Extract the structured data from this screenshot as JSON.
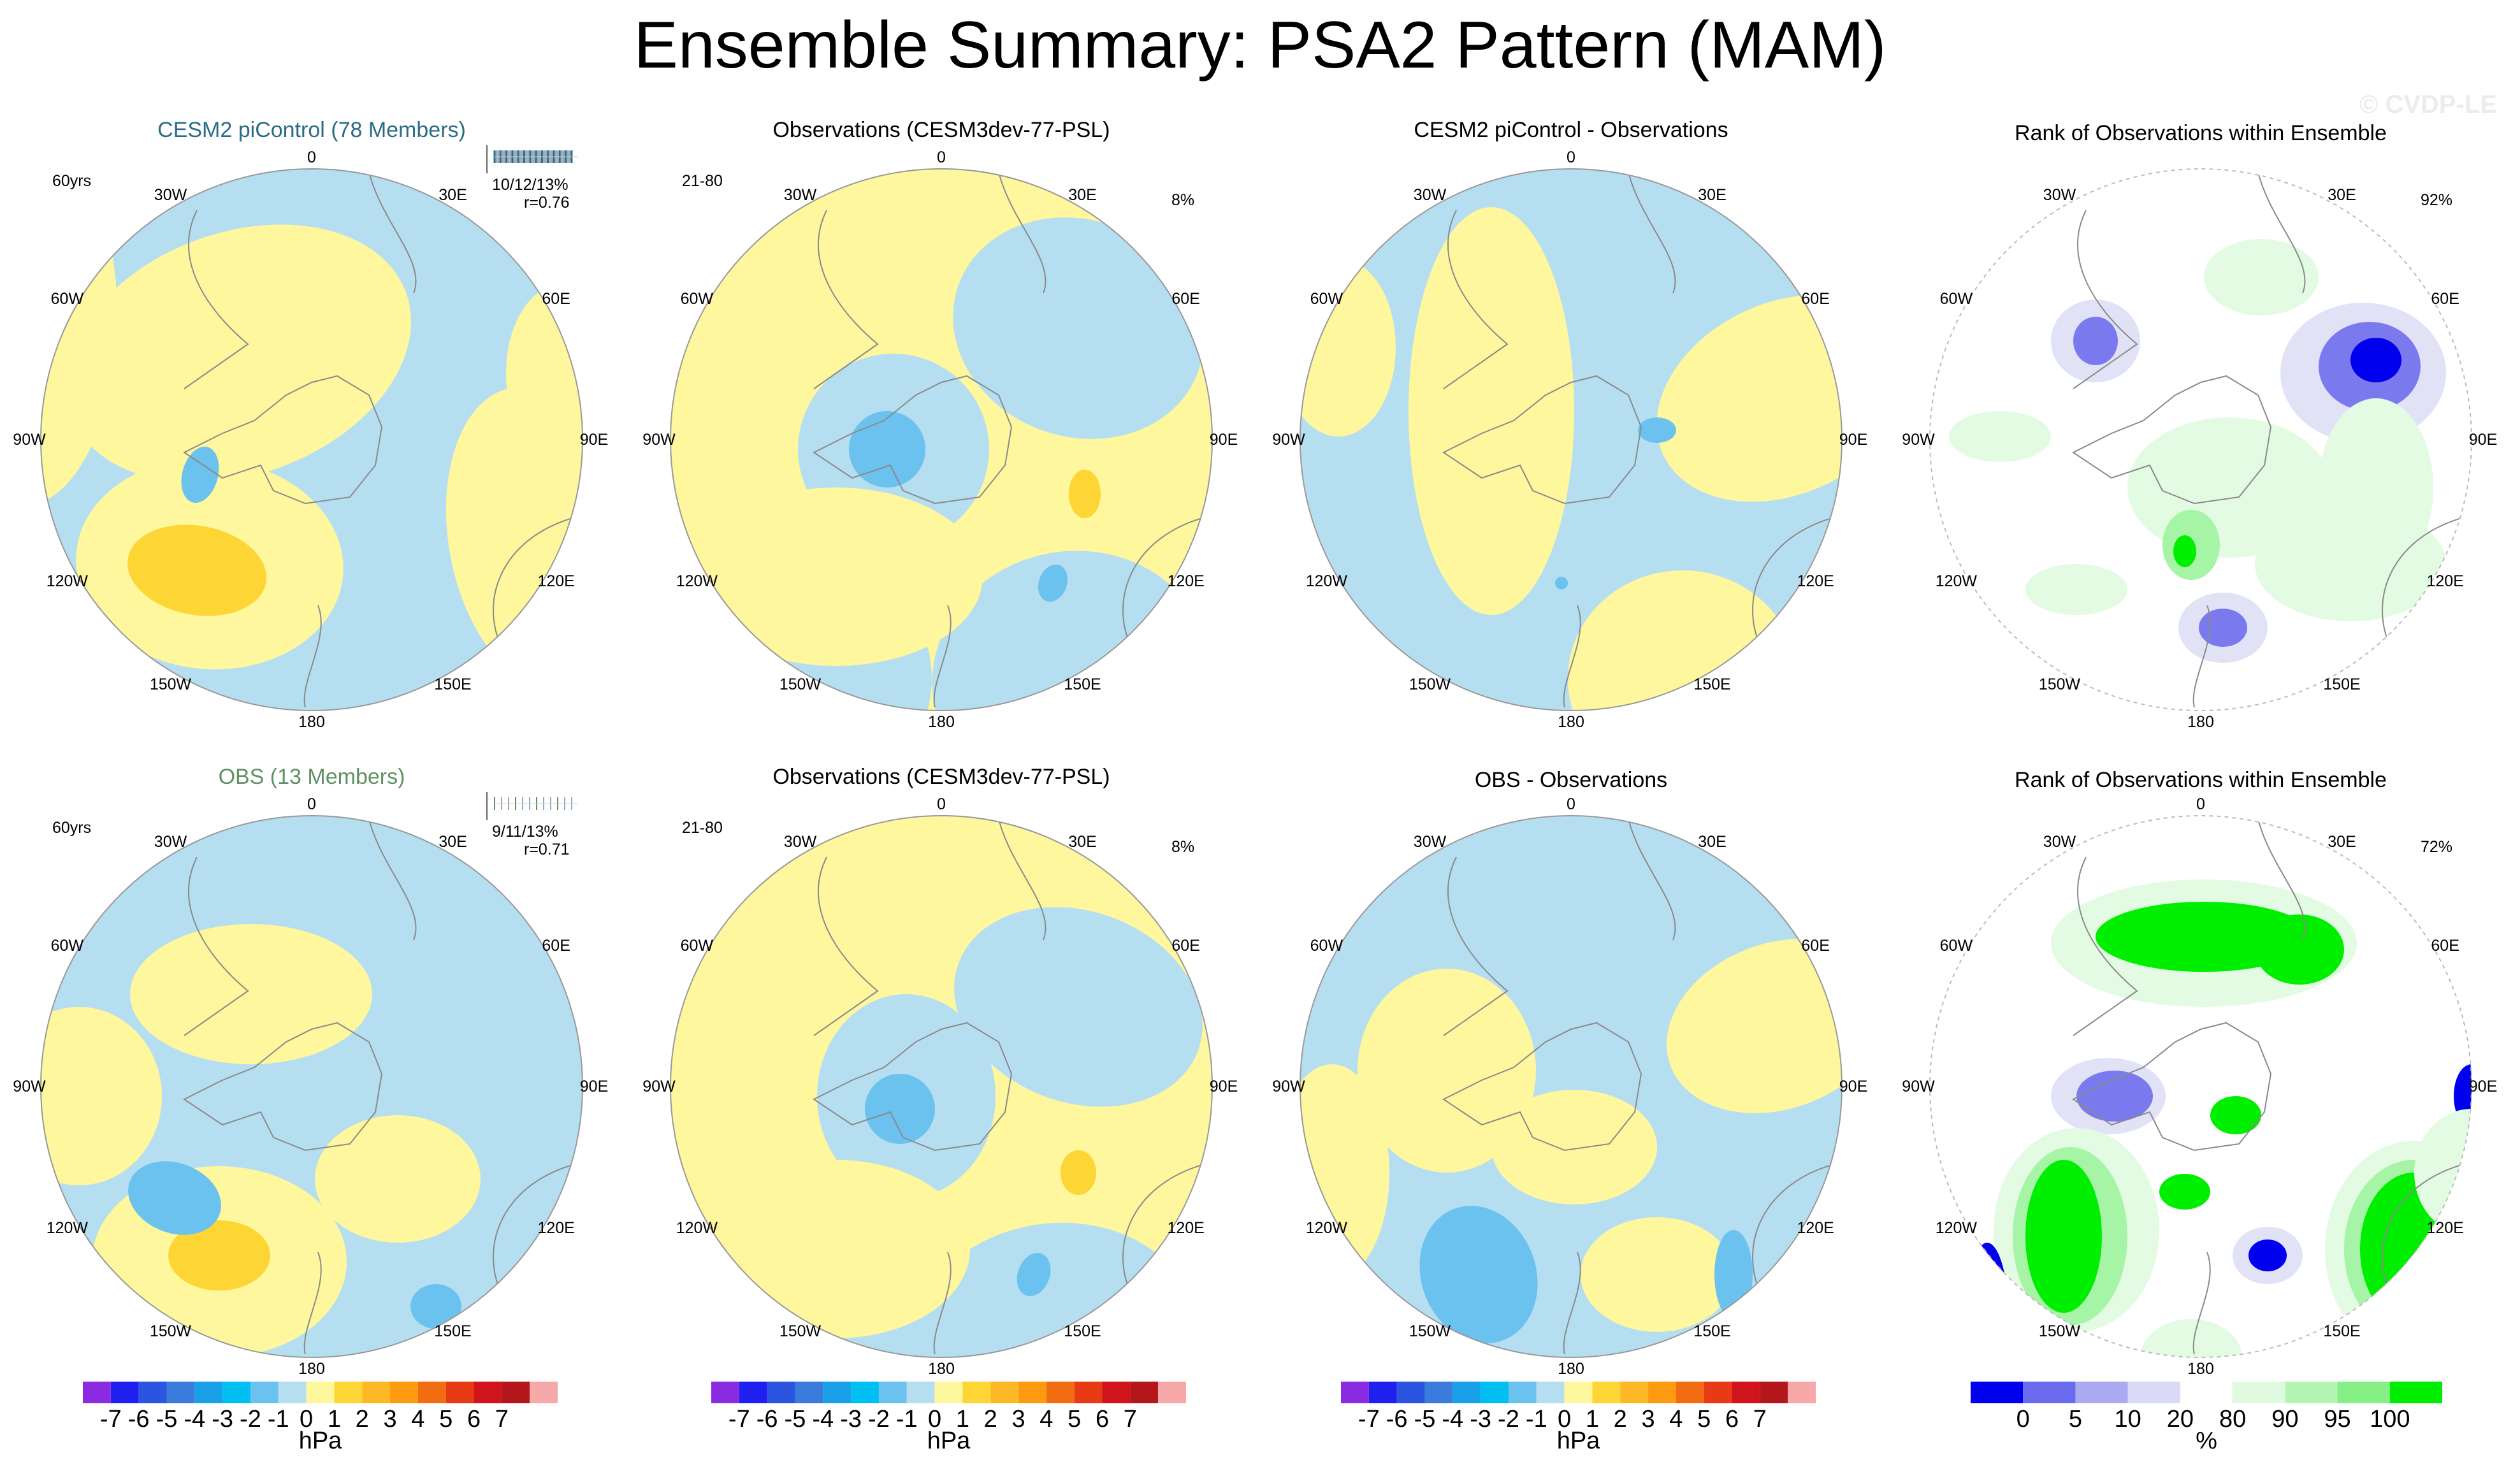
{
  "title": "Ensemble Summary: PSA2 Pattern (MAM)",
  "watermark": "© CVDP-LE",
  "colors": {
    "pos1": "#fef79e",
    "pos2": "#fdd534",
    "pos3": "#fda30a",
    "neg1": "#b6def1",
    "neg2": "#6bc2ee",
    "land": "#8a8a8a",
    "rank_dark": "#0000ee",
    "rank_mid": "#7a7aee",
    "rank_light": "#c8c8f4",
    "rank_vlight": "#e2e2f7",
    "rank_pale": "#e2fbe2",
    "rank_lgreen": "#a6f4a6",
    "rank_green": "#00ee00",
    "cyan_title": "#2a6c86",
    "green_title": "#5f9163"
  },
  "rows": [
    {
      "panels": [
        {
          "title": "CESM2 piControl (78 Members)",
          "stat_left": "60yrs",
          "stat_right": "10/12/13%",
          "stat_r": "r=0.76"
        },
        {
          "title": "Observations (CESM3dev-77-PSL)",
          "stat_left": "21-80",
          "stat_right": "8%"
        },
        {
          "title": "CESM2 piControl - Observations"
        },
        {
          "title": "Rank of Observations within Ensemble",
          "stat_right": "92%"
        }
      ]
    },
    {
      "panels": [
        {
          "title": "OBS (13 Members)",
          "stat_left": "60yrs",
          "stat_right": "9/11/13%",
          "stat_r": "r=0.71"
        },
        {
          "title": "Observations (CESM3dev-77-PSL)",
          "stat_left": "21-80",
          "stat_right": "8%"
        },
        {
          "title": "OBS - Observations"
        },
        {
          "title": "Rank of Observations within Ensemble",
          "stat_right": "72%"
        }
      ]
    }
  ],
  "lon_labels": [
    "0",
    "30E",
    "60E",
    "90E",
    "120E",
    "150E",
    "180",
    "150W",
    "120W",
    "90W",
    "60W",
    "30W"
  ],
  "hpa_bar": {
    "colors": [
      "#8a2be2",
      "#1f1fef",
      "#2b55e0",
      "#3a7bdc",
      "#1aa0e8",
      "#00bff3",
      "#6bc2ee",
      "#b6def1",
      "#fef79e",
      "#fdd534",
      "#fdb826",
      "#fd9a0f",
      "#f26d12",
      "#e83a14",
      "#d1141b",
      "#b3171b",
      "#f7a8a8"
    ],
    "ticks": [
      "-7",
      "-6",
      "-5",
      "-4",
      "-3",
      "-2",
      "-1",
      "0",
      "1",
      "2",
      "3",
      "4",
      "5",
      "6",
      "7"
    ],
    "unit": "hPa"
  },
  "rank_bar": {
    "colors": [
      "#0000ee",
      "#6a6aee",
      "#aaaaf2",
      "#dadaf6",
      "#ffffff",
      "#e0fae0",
      "#b4f5b4",
      "#86f086",
      "#00ee00"
    ],
    "ticks": [
      "0",
      "5",
      "10",
      "20",
      "80",
      "90",
      "95",
      "100"
    ],
    "unit": "%"
  }
}
